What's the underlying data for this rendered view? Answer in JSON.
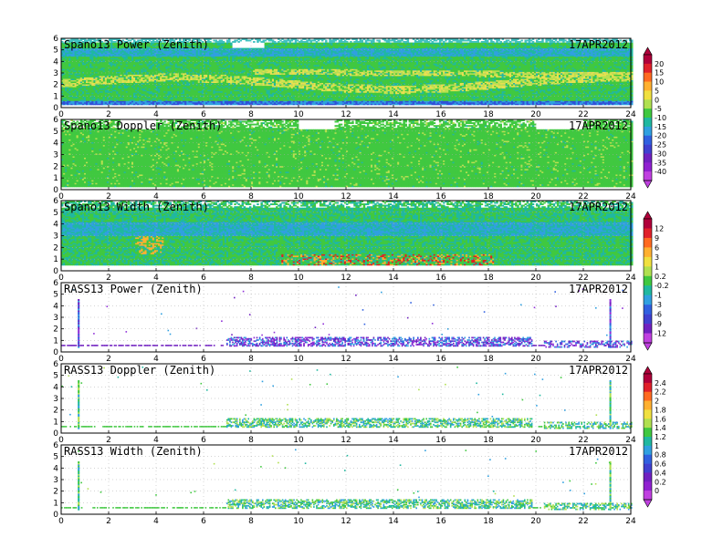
{
  "chart_data": [
    {
      "type": "heatmap",
      "title": "Spano13 Power (Zenith)",
      "date": "17APR2012",
      "xlim": [
        0,
        24
      ],
      "ylim": [
        0,
        6
      ],
      "xticks": [
        0,
        2,
        4,
        6,
        8,
        10,
        12,
        14,
        16,
        18,
        20,
        22,
        24
      ],
      "yticks": [
        0,
        1,
        2,
        3,
        4,
        5,
        6
      ],
      "colorbar": "power"
    },
    {
      "type": "heatmap",
      "title": "Spano13 Doppler (Zenith)",
      "date": "17APR2012",
      "xlim": [
        0,
        24
      ],
      "ylim": [
        0,
        6
      ],
      "xticks": [
        0,
        2,
        4,
        6,
        8,
        10,
        12,
        14,
        16,
        18,
        20,
        22,
        24
      ],
      "yticks": [
        0,
        1,
        2,
        3,
        4,
        5,
        6
      ],
      "colorbar": "power"
    },
    {
      "type": "heatmap",
      "title": "Spano13 Width (Zenith)",
      "date": "17APR2012",
      "xlim": [
        0,
        24
      ],
      "ylim": [
        0,
        6
      ],
      "xticks": [
        0,
        2,
        4,
        6,
        8,
        10,
        12,
        14,
        16,
        18,
        20,
        22,
        24
      ],
      "yticks": [
        0,
        1,
        2,
        3,
        4,
        5,
        6
      ],
      "colorbar": "width"
    },
    {
      "type": "heatmap",
      "title": "RASS13 Power (Zenith)",
      "date": "17APR2012",
      "xlim": [
        0,
        24
      ],
      "ylim": [
        0,
        6
      ],
      "xticks": [
        0,
        2,
        4,
        6,
        8,
        10,
        12,
        14,
        16,
        18,
        20,
        22,
        24
      ],
      "yticks": [
        0,
        1,
        2,
        3,
        4,
        5,
        6
      ],
      "colorbar": "width"
    },
    {
      "type": "heatmap",
      "title": "RASS13 Doppler (Zenith)",
      "date": "17APR2012",
      "xlim": [
        0,
        24
      ],
      "ylim": [
        0,
        6
      ],
      "xticks": [
        0,
        2,
        4,
        6,
        8,
        10,
        12,
        14,
        16,
        18,
        20,
        22,
        24
      ],
      "yticks": [
        0,
        1,
        2,
        3,
        4,
        5,
        6
      ],
      "colorbar": "rass"
    },
    {
      "type": "heatmap",
      "title": "RASS13 Width (Zenith)",
      "date": "17APR2012",
      "xlim": [
        0,
        24
      ],
      "ylim": [
        0,
        6
      ],
      "xticks": [
        0,
        2,
        4,
        6,
        8,
        10,
        12,
        14,
        16,
        18,
        20,
        22,
        24
      ],
      "yticks": [
        0,
        1,
        2,
        3,
        4,
        5,
        6
      ],
      "colorbar": "rass"
    }
  ],
  "colorbars": {
    "power": {
      "labels": [
        "20",
        "15",
        "10",
        "5",
        "0",
        "-5",
        "-10",
        "-15",
        "-20",
        "-25",
        "-30",
        "-35",
        "-40"
      ],
      "colors": [
        "#b0003a",
        "#e0202a",
        "#ff6a20",
        "#ffb030",
        "#f0e040",
        "#b0e050",
        "#40c840",
        "#20b8a0",
        "#30a0e0",
        "#3060e0",
        "#4040d0",
        "#7020c0",
        "#9020d0",
        "#c040e0"
      ]
    },
    "width": {
      "labels": [
        "12",
        "9",
        "6",
        "3",
        "1",
        "0.2",
        "-0.2",
        "-1",
        "-3",
        "-6",
        "-9",
        "-12"
      ],
      "colors": [
        "#b0003a",
        "#e0202a",
        "#ff6a20",
        "#ffb030",
        "#f0e040",
        "#b0e050",
        "#40c840",
        "#20b8a0",
        "#30a0e0",
        "#3060e0",
        "#4040d0",
        "#7020c0",
        "#c040e0"
      ]
    },
    "rass": {
      "labels": [
        "2.4",
        "2.2",
        "2",
        "1.8",
        "1.6",
        "1.4",
        "1.2",
        "1",
        "0.8",
        "0.6",
        "0.4",
        "0.2",
        "0"
      ],
      "colors": [
        "#b0003a",
        "#e0202a",
        "#ff6a20",
        "#ffb030",
        "#f0e040",
        "#b0e050",
        "#40c840",
        "#20b8a0",
        "#30a0e0",
        "#3060e0",
        "#4040d0",
        "#7020c0",
        "#9020d0",
        "#c040e0"
      ]
    }
  }
}
